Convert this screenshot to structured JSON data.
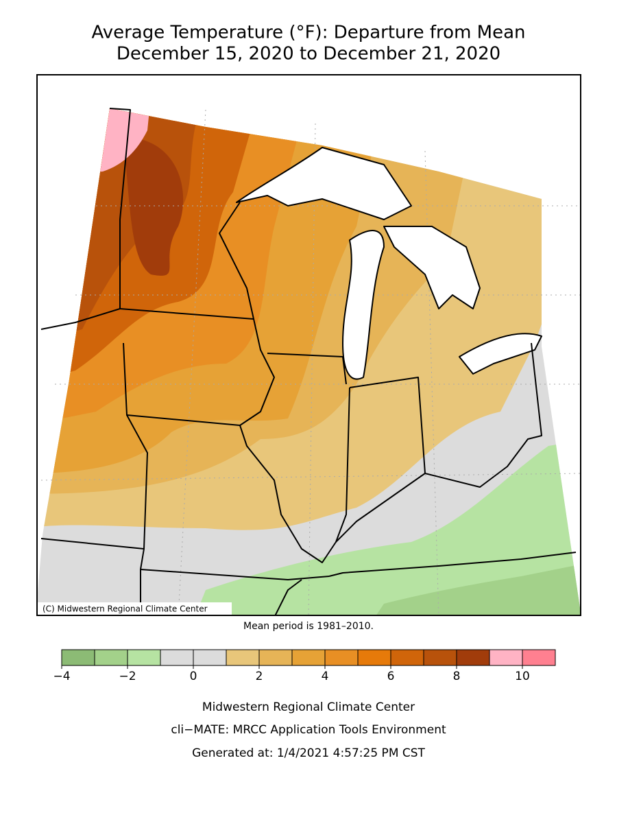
{
  "header": {
    "title_line1": "Average Temperature (°F): Departure from Mean",
    "title_line2": "December 15, 2020 to December 21, 2020"
  },
  "map": {
    "copyright": "(C) Midwestern Regional Climate Center",
    "note": "Mean period is 1981–2010."
  },
  "colorbar": {
    "lim": [
      -4,
      11
    ],
    "bins": [
      -4,
      -3,
      -2,
      -1,
      0,
      1,
      2,
      3,
      4,
      5,
      6,
      7,
      8,
      9,
      10,
      11
    ],
    "colors": [
      "#8cbb75",
      "#a3d18a",
      "#b6e3a2",
      "#dcdcdc",
      "#dcdcdc",
      "#e8c67a",
      "#e6b457",
      "#e6a236",
      "#e88f24",
      "#e67a0a",
      "#d0650a",
      "#b8520b",
      "#a13c0b",
      "#ffb3c4",
      "#ff8090"
    ],
    "ticks": [
      {
        "value": -4,
        "label": "−4"
      },
      {
        "value": -2,
        "label": "−2"
      },
      0,
      2,
      4,
      6,
      8,
      10
    ]
  },
  "footer": {
    "line1": "Midwestern Regional Climate Center",
    "line2": "cli−MATE: MRCC Application Tools Environment",
    "line3": "Generated at: 1/4/2021 4:57:25 PM CST"
  }
}
